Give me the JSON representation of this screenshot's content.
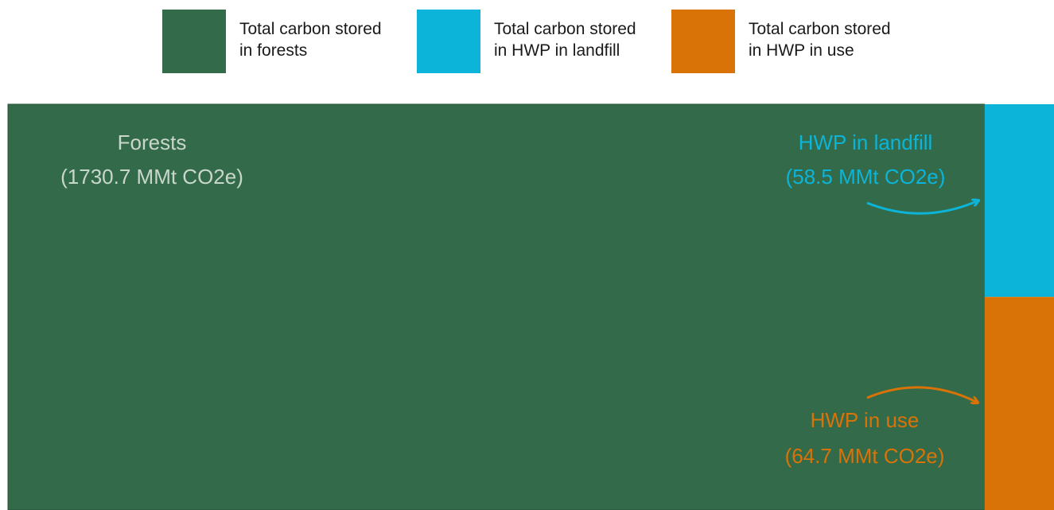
{
  "legend": [
    {
      "line1": "Total carbon stored",
      "line2": "in forests",
      "color": "#336b4a"
    },
    {
      "line1": "Total carbon stored",
      "line2": "in HWP in landfill",
      "color": "#0bb4d8"
    },
    {
      "line1": "Total carbon stored",
      "line2": "in HWP in use",
      "color": "#d97308"
    }
  ],
  "chart_data": {
    "type": "treemap",
    "unit": "MMt CO2e",
    "items": [
      {
        "name": "Forests",
        "label": "Forests",
        "value_label": "(1730.7 MMt CO2e)",
        "value": 1730.7,
        "color": "#336b4a",
        "label_color": "#c9d6cc"
      },
      {
        "name": "HWP in landfill",
        "label": "HWP in landfill",
        "value_label": "(58.5 MMt CO2e)",
        "value": 58.5,
        "color": "#0bb4d8",
        "label_color": "#0bb4d8"
      },
      {
        "name": "HWP in use",
        "label": "HWP in use",
        "value_label": "(64.7 MMt CO2e)",
        "value": 64.7,
        "color": "#d97308",
        "label_color": "#d97308"
      }
    ]
  }
}
